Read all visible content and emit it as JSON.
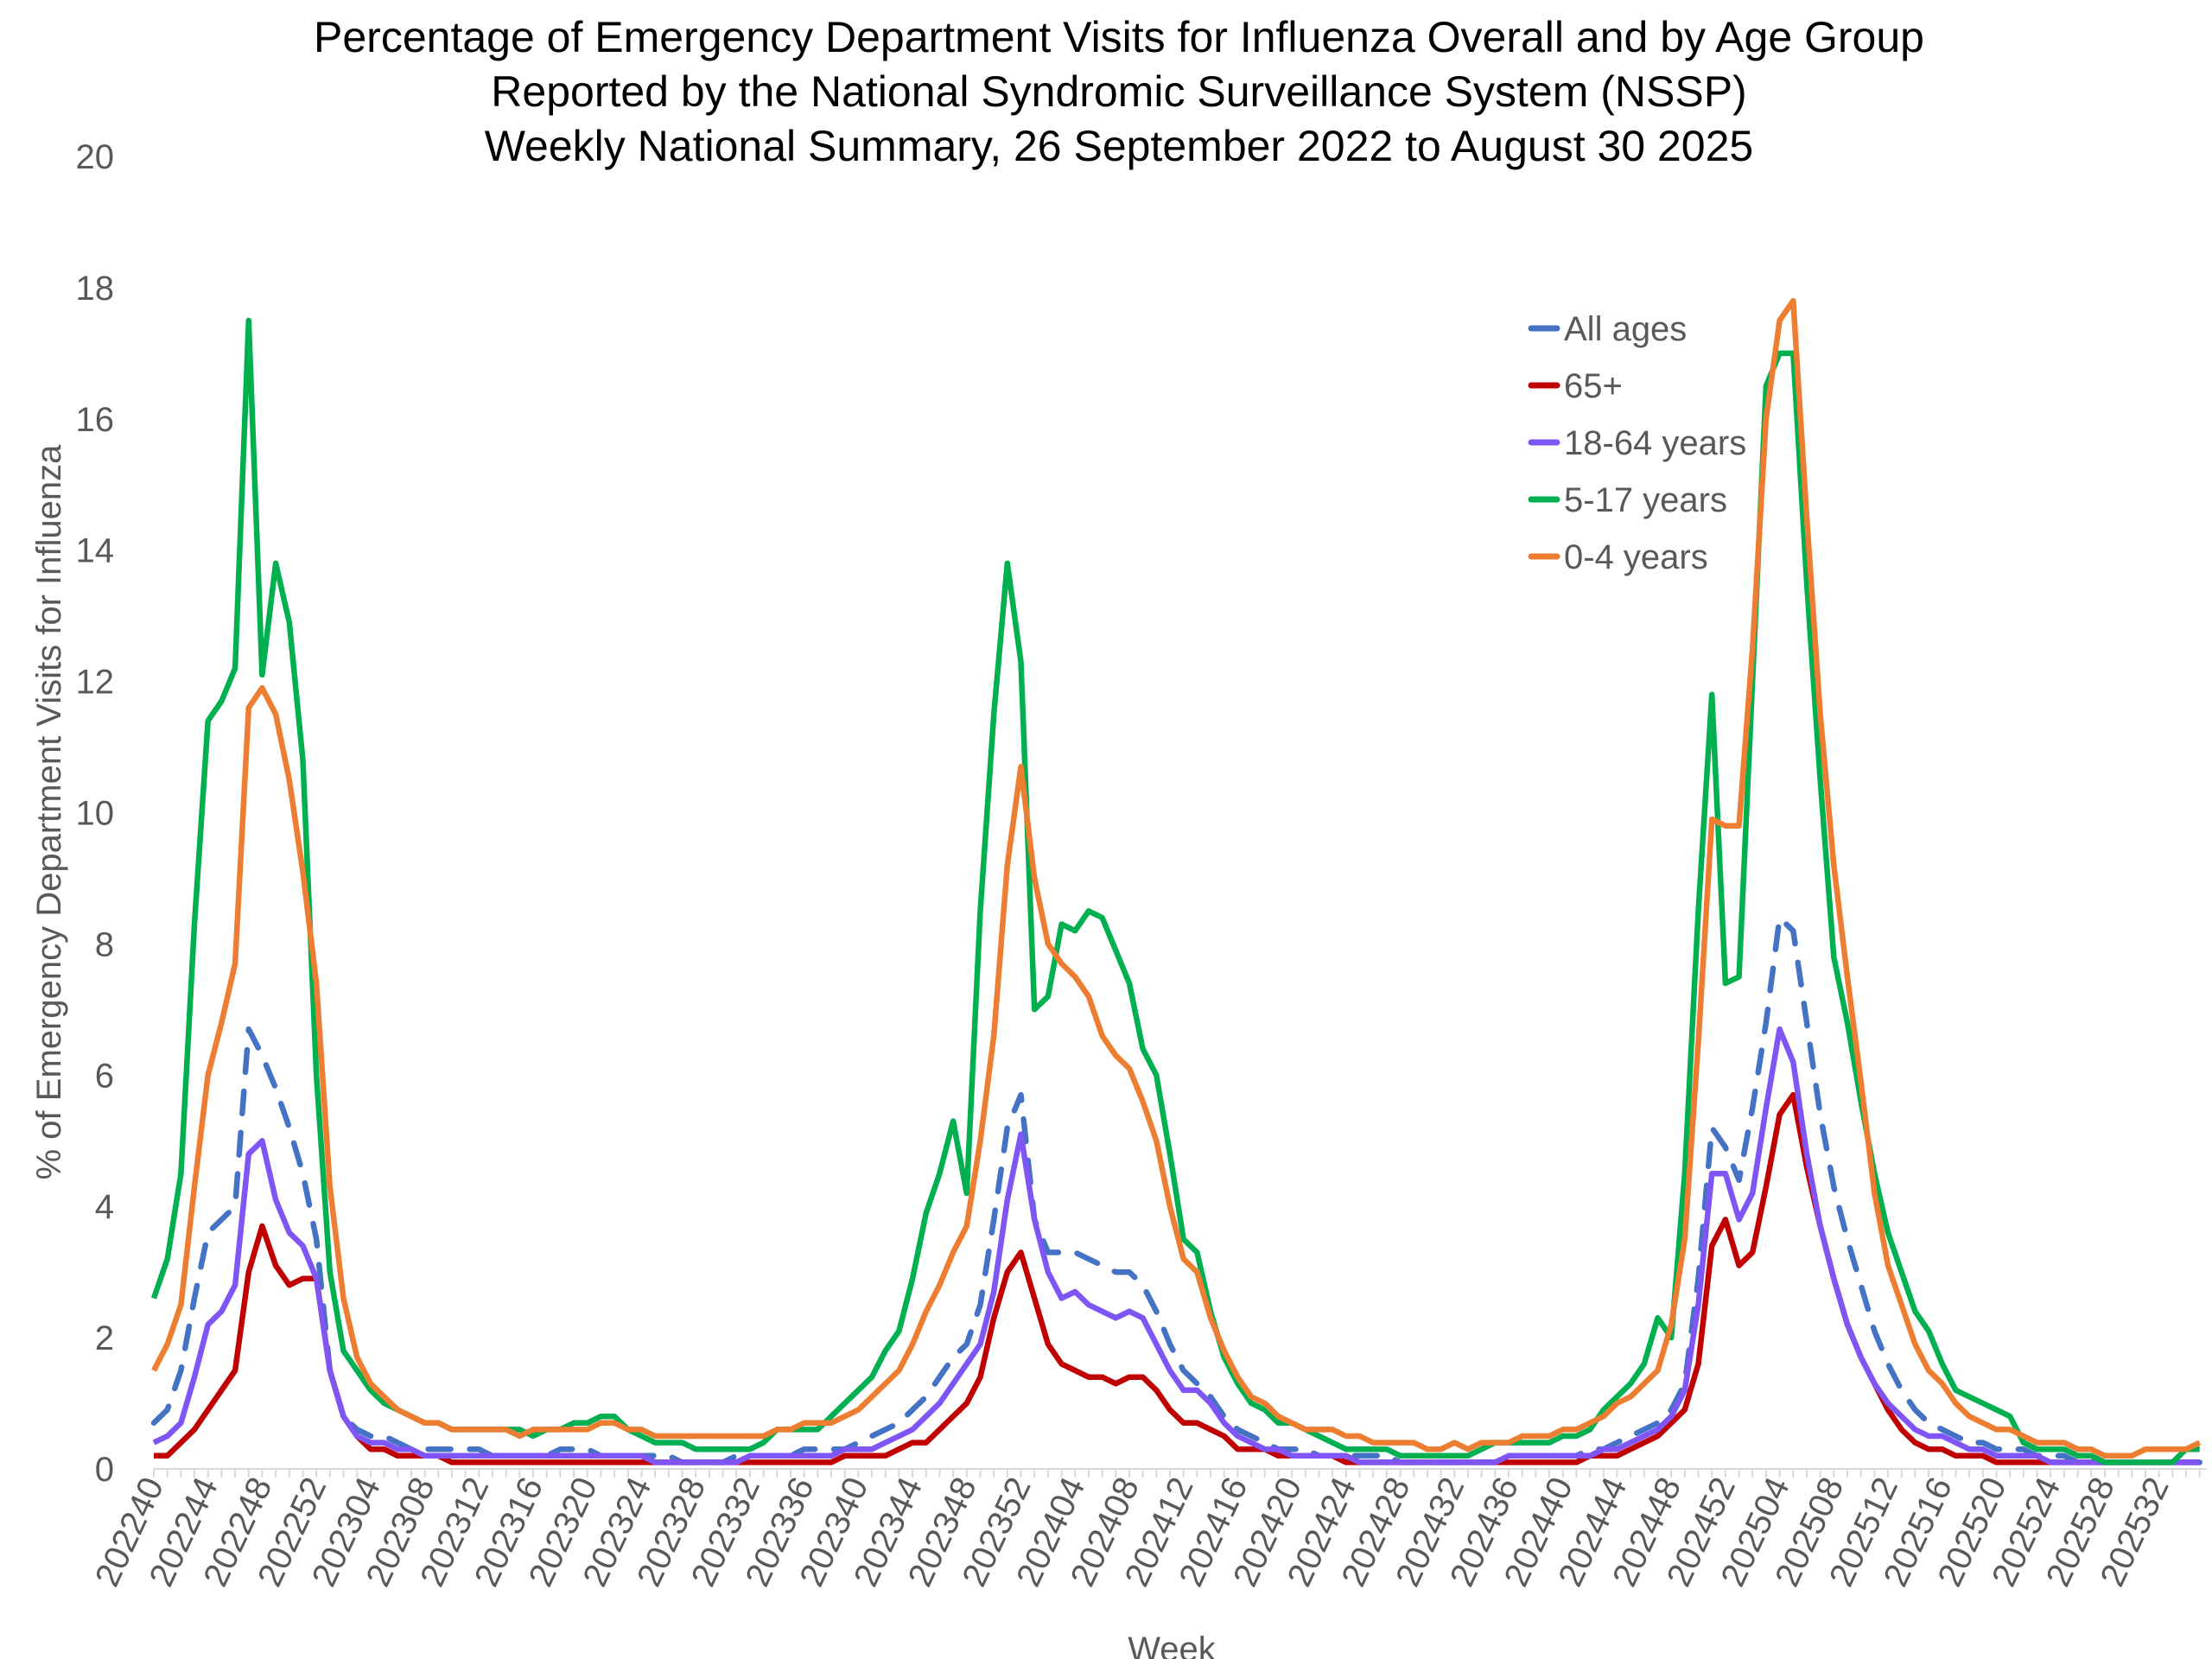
{
  "chart_data": {
    "type": "line",
    "title": [
      "Percentage of Emergency Department Visits for Influenza Overall and by Age Group",
      "Reported by the National Syndromic Surveillance System (NSSP)",
      "Weekly National Summary, 26 September 2022 to  August 30 2025"
    ],
    "xlabel": "Week",
    "ylabel": "% of Emergency Department Visits for Influenza",
    "ylim": [
      0,
      20
    ],
    "yticks": [
      "0",
      "2",
      "4",
      "6",
      "8",
      "10",
      "12",
      "14",
      "16",
      "18",
      "20"
    ],
    "xticks": [
      "202240",
      "202244",
      "202248",
      "202252",
      "202304",
      "202308",
      "202312",
      "202316",
      "202320",
      "202324",
      "202328",
      "202332",
      "202336",
      "202340",
      "202344",
      "202348",
      "202352",
      "202404",
      "202408",
      "202412",
      "202416",
      "202420",
      "202424",
      "202428",
      "202432",
      "202436",
      "202440",
      "202444",
      "202448",
      "202452",
      "202504",
      "202508",
      "202512",
      "202516",
      "202520",
      "202524",
      "202528",
      "202532"
    ],
    "grid": false,
    "legend_position": "top-right",
    "x": [
      "202240",
      "202241",
      "202242",
      "202243",
      "202244",
      "202245",
      "202246",
      "202247",
      "202248",
      "202249",
      "202250",
      "202251",
      "202252",
      "202301",
      "202302",
      "202303",
      "202304",
      "202305",
      "202306",
      "202307",
      "202308",
      "202309",
      "202310",
      "202311",
      "202312",
      "202313",
      "202314",
      "202315",
      "202316",
      "202317",
      "202318",
      "202319",
      "202320",
      "202321",
      "202322",
      "202323",
      "202324",
      "202325",
      "202326",
      "202327",
      "202328",
      "202329",
      "202330",
      "202331",
      "202332",
      "202333",
      "202334",
      "202335",
      "202336",
      "202337",
      "202338",
      "202339",
      "202340",
      "202341",
      "202342",
      "202343",
      "202344",
      "202345",
      "202346",
      "202347",
      "202348",
      "202349",
      "202350",
      "202351",
      "202352",
      "202401",
      "202402",
      "202403",
      "202404",
      "202405",
      "202406",
      "202407",
      "202408",
      "202409",
      "202410",
      "202411",
      "202412",
      "202413",
      "202414",
      "202415",
      "202416",
      "202417",
      "202418",
      "202419",
      "202420",
      "202421",
      "202422",
      "202423",
      "202424",
      "202425",
      "202426",
      "202427",
      "202428",
      "202429",
      "202430",
      "202431",
      "202432",
      "202433",
      "202434",
      "202435",
      "202436",
      "202437",
      "202438",
      "202439",
      "202440",
      "202441",
      "202442",
      "202443",
      "202444",
      "202445",
      "202446",
      "202447",
      "202448",
      "202449",
      "202450",
      "202451",
      "202452",
      "202501",
      "202502",
      "202503",
      "202504",
      "202505",
      "202506",
      "202507",
      "202508",
      "202509",
      "202510",
      "202511",
      "202512",
      "202513",
      "202514",
      "202515",
      "202516",
      "202517",
      "202518",
      "202519",
      "202520",
      "202521",
      "202522",
      "202523",
      "202524",
      "202525",
      "202526",
      "202527",
      "202528",
      "202529",
      "202530",
      "202531",
      "202532",
      "202533",
      "202534",
      "202535"
    ],
    "series": [
      {
        "name": "All ages",
        "color": "#4472C4",
        "dashed": true,
        "values": [
          0.7,
          0.9,
          1.5,
          2.6,
          3.6,
          3.8,
          4.0,
          6.7,
          6.3,
          5.8,
          5.2,
          4.5,
          3.5,
          1.5,
          0.8,
          0.6,
          0.5,
          0.5,
          0.4,
          0.3,
          0.3,
          0.3,
          0.3,
          0.3,
          0.3,
          0.2,
          0.2,
          0.2,
          0.2,
          0.2,
          0.3,
          0.3,
          0.3,
          0.2,
          0.2,
          0.2,
          0.2,
          0.2,
          0.2,
          0.1,
          0.1,
          0.1,
          0.1,
          0.2,
          0.2,
          0.2,
          0.2,
          0.2,
          0.3,
          0.3,
          0.3,
          0.3,
          0.4,
          0.5,
          0.6,
          0.7,
          0.9,
          1.1,
          1.4,
          1.7,
          1.9,
          2.5,
          3.8,
          5.2,
          5.7,
          3.8,
          3.3,
          3.3,
          3.3,
          3.2,
          3.1,
          3.0,
          3.0,
          2.8,
          2.4,
          1.9,
          1.5,
          1.3,
          1.1,
          0.8,
          0.6,
          0.5,
          0.4,
          0.3,
          0.3,
          0.3,
          0.2,
          0.2,
          0.2,
          0.2,
          0.2,
          0.2,
          0.1,
          0.1,
          0.1,
          0.1,
          0.1,
          0.1,
          0.1,
          0.1,
          0.2,
          0.2,
          0.2,
          0.2,
          0.2,
          0.2,
          0.3,
          0.3,
          0.4,
          0.5,
          0.6,
          0.7,
          0.9,
          1.3,
          2.9,
          5.2,
          4.9,
          4.4,
          5.5,
          6.8,
          8.4,
          8.2,
          6.8,
          5.4,
          4.3,
          3.5,
          2.8,
          2.1,
          1.6,
          1.2,
          0.9,
          0.7,
          0.6,
          0.5,
          0.4,
          0.4,
          0.3,
          0.3,
          0.3,
          0.2,
          0.2,
          0.2,
          0.1,
          0.1,
          0.1,
          0.1,
          0.1,
          0.1,
          0.1,
          0.1,
          0.1,
          0.1
        ]
      },
      {
        "name": "65+",
        "color": "#C00000",
        "dashed": false,
        "values": [
          0.2,
          0.2,
          0.4,
          0.6,
          0.9,
          1.2,
          1.5,
          3.0,
          3.7,
          3.1,
          2.8,
          2.9,
          2.9,
          1.5,
          0.8,
          0.5,
          0.3,
          0.3,
          0.2,
          0.2,
          0.2,
          0.2,
          0.1,
          0.1,
          0.1,
          0.1,
          0.1,
          0.1,
          0.1,
          0.1,
          0.1,
          0.1,
          0.1,
          0.1,
          0.1,
          0.1,
          0.1,
          0.1,
          0.1,
          0.1,
          0.1,
          0.1,
          0.1,
          0.1,
          0.1,
          0.1,
          0.1,
          0.1,
          0.1,
          0.1,
          0.1,
          0.2,
          0.2,
          0.2,
          0.2,
          0.3,
          0.4,
          0.4,
          0.6,
          0.8,
          1.0,
          1.4,
          2.3,
          3.0,
          3.3,
          2.6,
          1.9,
          1.6,
          1.5,
          1.4,
          1.4,
          1.3,
          1.4,
          1.4,
          1.2,
          0.9,
          0.7,
          0.7,
          0.6,
          0.5,
          0.3,
          0.3,
          0.3,
          0.2,
          0.2,
          0.2,
          0.2,
          0.2,
          0.1,
          0.1,
          0.1,
          0.1,
          0.1,
          0.1,
          0.1,
          0.1,
          0.1,
          0.1,
          0.1,
          0.1,
          0.1,
          0.1,
          0.1,
          0.1,
          0.1,
          0.1,
          0.2,
          0.2,
          0.2,
          0.3,
          0.4,
          0.5,
          0.7,
          0.9,
          1.6,
          3.4,
          3.8,
          3.1,
          3.3,
          4.3,
          5.4,
          5.7,
          4.6,
          3.7,
          2.9,
          2.2,
          1.7,
          1.3,
          0.9,
          0.6,
          0.4,
          0.3,
          0.3,
          0.2,
          0.2,
          0.2,
          0.1,
          0.1,
          0.1,
          0.1,
          0.1,
          0.1,
          0.1,
          0.1,
          0.1,
          0.1,
          0.1,
          0.1,
          0.1,
          0.1,
          0.1,
          0.1
        ]
      },
      {
        "name": "18-64 years",
        "color": "#7F56F5",
        "dashed": false,
        "values": [
          0.4,
          0.5,
          0.7,
          1.4,
          2.2,
          2.4,
          2.8,
          4.8,
          5.0,
          4.1,
          3.6,
          3.4,
          2.9,
          1.5,
          0.8,
          0.5,
          0.4,
          0.4,
          0.3,
          0.3,
          0.2,
          0.2,
          0.2,
          0.2,
          0.2,
          0.2,
          0.2,
          0.2,
          0.2,
          0.2,
          0.2,
          0.2,
          0.2,
          0.2,
          0.2,
          0.2,
          0.2,
          0.1,
          0.1,
          0.1,
          0.1,
          0.1,
          0.1,
          0.1,
          0.2,
          0.2,
          0.2,
          0.2,
          0.2,
          0.2,
          0.2,
          0.3,
          0.3,
          0.3,
          0.4,
          0.5,
          0.6,
          0.8,
          1.0,
          1.3,
          1.6,
          1.9,
          2.7,
          4.1,
          5.1,
          3.8,
          3.0,
          2.6,
          2.7,
          2.5,
          2.4,
          2.3,
          2.4,
          2.3,
          1.9,
          1.5,
          1.2,
          1.2,
          1.0,
          0.7,
          0.5,
          0.4,
          0.3,
          0.3,
          0.2,
          0.2,
          0.2,
          0.2,
          0.2,
          0.1,
          0.1,
          0.1,
          0.1,
          0.1,
          0.1,
          0.1,
          0.1,
          0.1,
          0.1,
          0.1,
          0.2,
          0.2,
          0.2,
          0.2,
          0.2,
          0.2,
          0.2,
          0.3,
          0.3,
          0.4,
          0.5,
          0.6,
          0.8,
          1.2,
          2.5,
          4.5,
          4.5,
          3.8,
          4.2,
          5.5,
          6.7,
          6.2,
          4.8,
          3.7,
          2.9,
          2.2,
          1.7,
          1.3,
          1.0,
          0.8,
          0.6,
          0.5,
          0.5,
          0.4,
          0.3,
          0.3,
          0.2,
          0.2,
          0.2,
          0.2,
          0.1,
          0.1,
          0.1,
          0.1,
          0.1,
          0.1,
          0.1,
          0.1,
          0.1,
          0.1,
          0.1,
          0.1
        ]
      },
      {
        "name": "5-17 years",
        "color": "#00B050",
        "dashed": false,
        "values": [
          2.6,
          3.2,
          4.5,
          8.3,
          11.4,
          11.7,
          12.2,
          17.5,
          12.1,
          13.8,
          12.9,
          10.8,
          6.0,
          3.0,
          1.8,
          1.5,
          1.2,
          1.0,
          0.9,
          0.8,
          0.7,
          0.7,
          0.6,
          0.6,
          0.6,
          0.6,
          0.6,
          0.6,
          0.5,
          0.6,
          0.6,
          0.7,
          0.7,
          0.8,
          0.8,
          0.6,
          0.5,
          0.4,
          0.4,
          0.4,
          0.3,
          0.3,
          0.3,
          0.3,
          0.3,
          0.4,
          0.6,
          0.6,
          0.6,
          0.6,
          0.8,
          1.0,
          1.2,
          1.4,
          1.8,
          2.1,
          2.9,
          3.9,
          4.5,
          5.3,
          4.2,
          8.5,
          11.5,
          13.8,
          12.3,
          7.0,
          7.2,
          8.3,
          8.2,
          8.5,
          8.4,
          7.9,
          7.4,
          6.4,
          6.0,
          4.8,
          3.5,
          3.3,
          2.4,
          1.7,
          1.3,
          1.0,
          0.9,
          0.7,
          0.7,
          0.6,
          0.5,
          0.4,
          0.3,
          0.3,
          0.3,
          0.3,
          0.2,
          0.2,
          0.2,
          0.2,
          0.2,
          0.2,
          0.3,
          0.4,
          0.4,
          0.4,
          0.4,
          0.4,
          0.5,
          0.5,
          0.6,
          0.9,
          1.1,
          1.3,
          1.6,
          2.3,
          2.0,
          4.5,
          8.5,
          11.8,
          7.4,
          7.5,
          12.0,
          16.5,
          17.0,
          17.0,
          13.5,
          10.5,
          7.8,
          6.8,
          5.6,
          4.5,
          3.6,
          3.0,
          2.4,
          2.1,
          1.6,
          1.2,
          1.1,
          1.0,
          0.9,
          0.8,
          0.4,
          0.3,
          0.3,
          0.3,
          0.2,
          0.2,
          0.1,
          0.1,
          0.1,
          0.1,
          0.1,
          0.1,
          0.3,
          0.3
        ]
      },
      {
        "name": "0-4 years",
        "color": "#ED7D31",
        "dashed": false,
        "values": [
          1.5,
          1.9,
          2.5,
          4.3,
          6.0,
          6.8,
          7.7,
          11.6,
          11.9,
          11.5,
          10.5,
          9.1,
          7.4,
          4.3,
          2.6,
          1.7,
          1.3,
          1.1,
          0.9,
          0.8,
          0.7,
          0.7,
          0.6,
          0.6,
          0.6,
          0.6,
          0.6,
          0.5,
          0.6,
          0.6,
          0.6,
          0.6,
          0.6,
          0.7,
          0.7,
          0.6,
          0.6,
          0.5,
          0.5,
          0.5,
          0.5,
          0.5,
          0.5,
          0.5,
          0.5,
          0.5,
          0.6,
          0.6,
          0.7,
          0.7,
          0.7,
          0.8,
          0.9,
          1.1,
          1.3,
          1.5,
          1.9,
          2.4,
          2.8,
          3.3,
          3.7,
          5.0,
          6.6,
          9.2,
          10.7,
          9.0,
          8.0,
          7.7,
          7.5,
          7.2,
          6.6,
          6.3,
          6.1,
          5.6,
          5.0,
          4.0,
          3.2,
          3.0,
          2.3,
          1.8,
          1.4,
          1.1,
          1.0,
          0.8,
          0.7,
          0.6,
          0.6,
          0.6,
          0.5,
          0.5,
          0.4,
          0.4,
          0.4,
          0.4,
          0.3,
          0.3,
          0.4,
          0.3,
          0.4,
          0.4,
          0.4,
          0.5,
          0.5,
          0.5,
          0.6,
          0.6,
          0.7,
          0.8,
          1.0,
          1.1,
          1.3,
          1.5,
          2.2,
          3.5,
          6.5,
          9.9,
          9.8,
          9.8,
          12.5,
          16.0,
          17.5,
          17.8,
          14.5,
          11.5,
          9.2,
          7.5,
          5.9,
          4.2,
          3.1,
          2.5,
          1.9,
          1.5,
          1.3,
          1.0,
          0.8,
          0.7,
          0.6,
          0.6,
          0.5,
          0.4,
          0.4,
          0.4,
          0.3,
          0.3,
          0.2,
          0.2,
          0.2,
          0.3,
          0.3,
          0.3,
          0.3,
          0.4
        ]
      }
    ]
  }
}
